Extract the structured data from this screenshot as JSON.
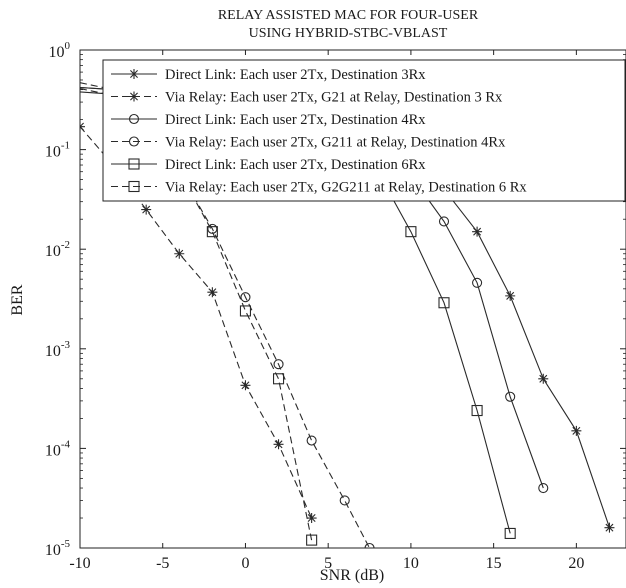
{
  "chart_data": {
    "type": "line",
    "title": [
      "RELAY ASSISTED MAC FOR FOUR-USER",
      "USING HYBRID-STBC-VBLAST"
    ],
    "xlabel": "SNR (dB)",
    "ylabel": "BER",
    "xlim": [
      -10,
      23
    ],
    "ylim": [
      1e-05,
      1
    ],
    "yscale": "log",
    "x_ticks": [
      "-10",
      "-5",
      "0",
      "5",
      "10",
      "15",
      "20"
    ],
    "y_ticks": [
      {
        "base": "10",
        "exp": "0",
        "value": 1
      },
      {
        "base": "10",
        "exp": "-1",
        "value": 0.1
      },
      {
        "base": "10",
        "exp": "-2",
        "value": 0.01
      },
      {
        "base": "10",
        "exp": "-3",
        "value": 0.001
      },
      {
        "base": "10",
        "exp": "-4",
        "value": 0.0001
      },
      {
        "base": "10",
        "exp": "-5",
        "value": 1e-05
      }
    ],
    "grid": false,
    "legend_position": "top-right",
    "series": [
      {
        "name": "Direct Link: Each user 2Tx, Destination 3Rx",
        "line": "solid",
        "marker": "asterisk",
        "x": [
          -10,
          -8,
          -6,
          -4,
          -2,
          0,
          2,
          4,
          6,
          8,
          10,
          12,
          14,
          16,
          18,
          20,
          22
        ],
        "y": [
          0.42,
          0.4,
          0.38,
          0.35,
          0.31,
          0.27,
          0.22,
          0.17,
          0.13,
          0.1,
          0.075,
          0.04,
          0.015,
          0.0034,
          0.0005,
          0.00015,
          1.6e-05
        ]
      },
      {
        "name": "Via Relay: Each user 2Tx, G21 at Relay, Destination 3 Rx",
        "line": "dashed",
        "marker": "asterisk",
        "x": [
          -10,
          -8,
          -6,
          -4,
          -2,
          0,
          2,
          4
        ],
        "y": [
          0.17,
          0.07,
          0.025,
          0.009,
          0.0037,
          0.00043,
          0.00011,
          2e-05
        ]
      },
      {
        "name": "Direct Link: Each user 2Tx, Destination 4Rx",
        "line": "solid",
        "marker": "circle",
        "x": [
          -10,
          -8,
          -6,
          -4,
          -2,
          0,
          2,
          4,
          6,
          8,
          10,
          12,
          14,
          16,
          18
        ],
        "y": [
          0.42,
          0.4,
          0.38,
          0.35,
          0.31,
          0.27,
          0.22,
          0.17,
          0.13,
          0.09,
          0.055,
          0.019,
          0.0046,
          0.00033,
          4e-05
        ]
      },
      {
        "name": "Via Relay: Each user 2Tx, G211 at Relay, Destination 4Rx",
        "line": "dashed",
        "marker": "circle",
        "x": [
          -10,
          -8,
          -6,
          -4,
          -2,
          0,
          2,
          4,
          6,
          7.5
        ],
        "y": [
          0.41,
          0.35,
          0.2,
          0.06,
          0.016,
          0.0033,
          0.0007,
          0.00012,
          3e-05,
          1e-05
        ]
      },
      {
        "name": "Direct Link: Each user 2Tx, Destination 6Rx",
        "line": "solid",
        "marker": "square",
        "x": [
          -10,
          -8,
          -6,
          -4,
          -2,
          0,
          2,
          4,
          6,
          8,
          10,
          12,
          14,
          16
        ],
        "y": [
          0.38,
          0.36,
          0.33,
          0.3,
          0.26,
          0.22,
          0.18,
          0.14,
          0.1,
          0.06,
          0.015,
          0.0029,
          0.00024,
          1.4e-05
        ]
      },
      {
        "name": "Via Relay: Each user 2Tx, G2G211 at Relay, Destination 6 Rx",
        "line": "dashed",
        "marker": "square",
        "x": [
          -10,
          -8,
          -6,
          -4,
          -2,
          0,
          2,
          4
        ],
        "y": [
          0.47,
          0.4,
          0.2,
          0.06,
          0.015,
          0.0024,
          0.0005,
          1.2e-05
        ]
      }
    ]
  }
}
